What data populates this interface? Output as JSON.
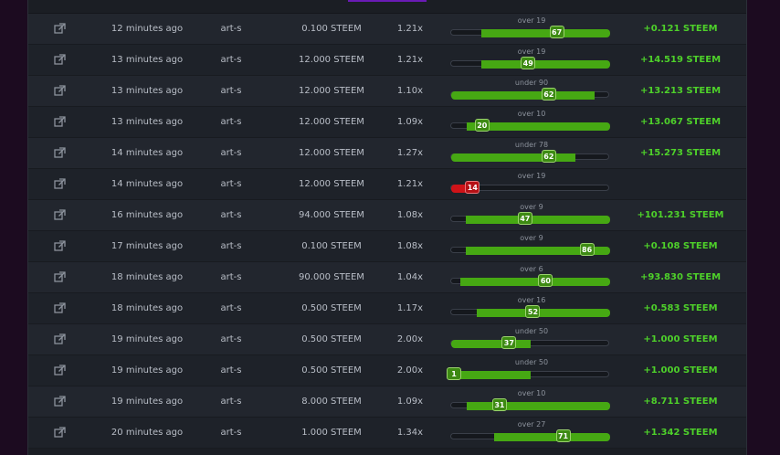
{
  "colors": {
    "win": "#4ed12a",
    "bar_fill": "#46a813",
    "bar_loss": "#cf1318",
    "accent": "#6a1bb5"
  },
  "row_icon": "external-link-icon",
  "bets": [
    {
      "time": "12 minutes ago",
      "user": "art-s",
      "amount": "0.100 STEEM",
      "multiplier": "1.21x",
      "roll_label": "over 19",
      "roll": 67,
      "fill_start": 0.19,
      "fill_end": 1.0,
      "loss": false,
      "profit": "+0.121 STEEM"
    },
    {
      "time": "13 minutes ago",
      "user": "art-s",
      "amount": "12.000 STEEM",
      "multiplier": "1.21x",
      "roll_label": "over 19",
      "roll": 49,
      "fill_start": 0.19,
      "fill_end": 1.0,
      "loss": false,
      "profit": "+14.519 STEEM"
    },
    {
      "time": "13 minutes ago",
      "user": "art-s",
      "amount": "12.000 STEEM",
      "multiplier": "1.10x",
      "roll_label": "under 90",
      "roll": 62,
      "fill_start": 0.0,
      "fill_end": 0.9,
      "loss": false,
      "profit": "+13.213 STEEM"
    },
    {
      "time": "13 minutes ago",
      "user": "art-s",
      "amount": "12.000 STEEM",
      "multiplier": "1.09x",
      "roll_label": "over 10",
      "roll": 20,
      "fill_start": 0.1,
      "fill_end": 1.0,
      "loss": false,
      "profit": "+13.067 STEEM"
    },
    {
      "time": "14 minutes ago",
      "user": "art-s",
      "amount": "12.000 STEEM",
      "multiplier": "1.27x",
      "roll_label": "under 78",
      "roll": 62,
      "fill_start": 0.0,
      "fill_end": 0.78,
      "loss": false,
      "profit": "+15.273 STEEM"
    },
    {
      "time": "14 minutes ago",
      "user": "art-s",
      "amount": "12.000 STEEM",
      "multiplier": "1.21x",
      "roll_label": "over 19",
      "roll": 14,
      "fill_start": 0.19,
      "fill_end": 1.0,
      "loss": true,
      "profit": ""
    },
    {
      "time": "16 minutes ago",
      "user": "art-s",
      "amount": "94.000 STEEM",
      "multiplier": "1.08x",
      "roll_label": "over 9",
      "roll": 47,
      "fill_start": 0.09,
      "fill_end": 1.0,
      "loss": false,
      "profit": "+101.231 STEEM"
    },
    {
      "time": "17 minutes ago",
      "user": "art-s",
      "amount": "0.100 STEEM",
      "multiplier": "1.08x",
      "roll_label": "over 9",
      "roll": 86,
      "fill_start": 0.09,
      "fill_end": 1.0,
      "loss": false,
      "profit": "+0.108 STEEM"
    },
    {
      "time": "18 minutes ago",
      "user": "art-s",
      "amount": "90.000 STEEM",
      "multiplier": "1.04x",
      "roll_label": "over 6",
      "roll": 60,
      "fill_start": 0.06,
      "fill_end": 1.0,
      "loss": false,
      "profit": "+93.830 STEEM"
    },
    {
      "time": "18 minutes ago",
      "user": "art-s",
      "amount": "0.500 STEEM",
      "multiplier": "1.17x",
      "roll_label": "over 16",
      "roll": 52,
      "fill_start": 0.16,
      "fill_end": 1.0,
      "loss": false,
      "profit": "+0.583 STEEM"
    },
    {
      "time": "19 minutes ago",
      "user": "art-s",
      "amount": "0.500 STEEM",
      "multiplier": "2.00x",
      "roll_label": "under 50",
      "roll": 37,
      "fill_start": 0.0,
      "fill_end": 0.5,
      "loss": false,
      "profit": "+1.000 STEEM"
    },
    {
      "time": "19 minutes ago",
      "user": "art-s",
      "amount": "0.500 STEEM",
      "multiplier": "2.00x",
      "roll_label": "under 50",
      "roll": 1,
      "fill_start": 0.0,
      "fill_end": 0.5,
      "loss": false,
      "profit": "+1.000 STEEM"
    },
    {
      "time": "19 minutes ago",
      "user": "art-s",
      "amount": "8.000 STEEM",
      "multiplier": "1.09x",
      "roll_label": "over 10",
      "roll": 31,
      "fill_start": 0.1,
      "fill_end": 1.0,
      "loss": false,
      "profit": "+8.711 STEEM"
    },
    {
      "time": "20 minutes ago",
      "user": "art-s",
      "amount": "1.000 STEEM",
      "multiplier": "1.34x",
      "roll_label": "over 27",
      "roll": 71,
      "fill_start": 0.27,
      "fill_end": 1.0,
      "loss": false,
      "profit": "+1.342 STEEM"
    }
  ]
}
